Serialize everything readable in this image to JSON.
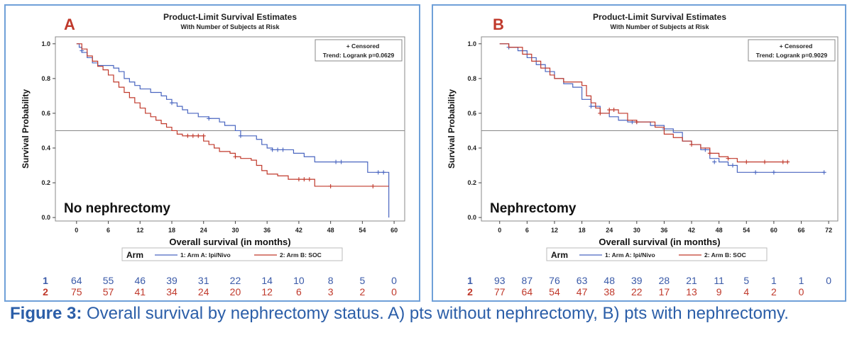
{
  "caption": {
    "label": "Figure 3:",
    "text": " Overall survival by nephrectomy status. A) pts without nephrectomy, B) pts with nephrectomy."
  },
  "colors": {
    "arm_a": "#4a66c0",
    "arm_b": "#c0392b",
    "panel_border": "#6fa0d8",
    "caption": "#2b5ea8",
    "panel_letter": "#c0392b"
  },
  "chart_data": [
    {
      "type": "line",
      "panel_letter": "A",
      "title": "Product-Limit Survival Estimates",
      "subtitle": "With Number of Subjects at Risk",
      "xlabel": "Overall survival (in months)",
      "ylabel": "Survival Probability",
      "xticks": [
        0,
        6,
        12,
        18,
        24,
        30,
        36,
        42,
        48,
        54,
        60
      ],
      "yticks": [
        0.0,
        0.2,
        0.4,
        0.6,
        0.8,
        1.0
      ],
      "xlim": [
        -4,
        62
      ],
      "ylim": [
        -0.02,
        1.04
      ],
      "reference_line": 0.5,
      "annotation_lines": [
        "+ Censored",
        "Trend: Logrank p=0.0629"
      ],
      "in_plot_label": "No nephrectomy",
      "legend_title": "Arm",
      "series": [
        {
          "name": "1: Arm A: Ipi/Nivo",
          "points": [
            [
              0,
              1.0
            ],
            [
              0.5,
              0.98
            ],
            [
              1,
              0.95
            ],
            [
              2,
              0.92
            ],
            [
              3,
              0.89
            ],
            [
              4,
              0.875
            ],
            [
              7,
              0.86
            ],
            [
              8,
              0.84
            ],
            [
              9,
              0.8
            ],
            [
              10,
              0.78
            ],
            [
              11,
              0.76
            ],
            [
              12,
              0.74
            ],
            [
              14,
              0.72
            ],
            [
              16,
              0.7
            ],
            [
              17,
              0.68
            ],
            [
              18,
              0.66
            ],
            [
              19,
              0.64
            ],
            [
              20,
              0.62
            ],
            [
              21,
              0.6
            ],
            [
              23,
              0.58
            ],
            [
              25,
              0.57
            ],
            [
              27,
              0.55
            ],
            [
              28,
              0.53
            ],
            [
              30,
              0.5
            ],
            [
              31,
              0.47
            ],
            [
              34,
              0.45
            ],
            [
              35,
              0.42
            ],
            [
              36,
              0.4
            ],
            [
              37,
              0.39
            ],
            [
              41,
              0.37
            ],
            [
              43,
              0.35
            ],
            [
              45,
              0.32
            ],
            [
              55,
              0.26
            ],
            [
              58,
              0.26
            ],
            [
              59,
              0.0
            ]
          ],
          "censored": [
            [
              1,
              0.96
            ],
            [
              18,
              0.66
            ],
            [
              25,
              0.57
            ],
            [
              31,
              0.47
            ],
            [
              37,
              0.39
            ],
            [
              38,
              0.39
            ],
            [
              39,
              0.39
            ],
            [
              49,
              0.32
            ],
            [
              50,
              0.32
            ],
            [
              57,
              0.26
            ],
            [
              58,
              0.26
            ]
          ]
        },
        {
          "name": "2: Arm B: SOC",
          "points": [
            [
              0,
              1.0
            ],
            [
              1,
              0.97
            ],
            [
              2,
              0.93
            ],
            [
              3,
              0.9
            ],
            [
              4,
              0.87
            ],
            [
              5,
              0.85
            ],
            [
              6,
              0.82
            ],
            [
              7,
              0.78
            ],
            [
              8,
              0.75
            ],
            [
              9,
              0.72
            ],
            [
              10,
              0.69
            ],
            [
              11,
              0.66
            ],
            [
              12,
              0.63
            ],
            [
              13,
              0.6
            ],
            [
              14,
              0.58
            ],
            [
              15,
              0.56
            ],
            [
              16,
              0.54
            ],
            [
              17,
              0.52
            ],
            [
              18,
              0.5
            ],
            [
              19,
              0.48
            ],
            [
              20,
              0.47
            ],
            [
              22,
              0.47
            ],
            [
              24,
              0.44
            ],
            [
              25,
              0.42
            ],
            [
              26,
              0.4
            ],
            [
              27,
              0.38
            ],
            [
              29,
              0.37
            ],
            [
              30,
              0.35
            ],
            [
              31,
              0.34
            ],
            [
              33,
              0.33
            ],
            [
              34,
              0.3
            ],
            [
              35,
              0.27
            ],
            [
              36,
              0.25
            ],
            [
              38,
              0.24
            ],
            [
              40,
              0.22
            ],
            [
              45,
              0.18
            ],
            [
              59,
              0.18
            ]
          ],
          "censored": [
            [
              21,
              0.47
            ],
            [
              22,
              0.47
            ],
            [
              23,
              0.47
            ],
            [
              24,
              0.47
            ],
            [
              30,
              0.35
            ],
            [
              42,
              0.22
            ],
            [
              43,
              0.22
            ],
            [
              44,
              0.22
            ],
            [
              48,
              0.18
            ],
            [
              56,
              0.18
            ]
          ]
        }
      ],
      "risk_table": {
        "row_labels": [
          "1",
          "2"
        ],
        "x": [
          0,
          6,
          12,
          18,
          24,
          30,
          36,
          42,
          48,
          54,
          60
        ],
        "rows": [
          [
            "64",
            "55",
            "46",
            "39",
            "31",
            "22",
            "14",
            "10",
            "8",
            "5",
            "0"
          ],
          [
            "75",
            "57",
            "41",
            "34",
            "24",
            "20",
            "12",
            "6",
            "3",
            "2",
            "0"
          ]
        ]
      }
    },
    {
      "type": "line",
      "panel_letter": "B",
      "title": "Product-Limit Survival Estimates",
      "subtitle": "With Number of Subjects at Risk",
      "xlabel": "Overall survival (in months)",
      "ylabel": "Survival Probability",
      "xticks": [
        0,
        6,
        12,
        18,
        24,
        30,
        36,
        42,
        48,
        54,
        60,
        66,
        72
      ],
      "yticks": [
        0.0,
        0.2,
        0.4,
        0.6,
        0.8,
        1.0
      ],
      "xlim": [
        -4,
        74
      ],
      "ylim": [
        -0.02,
        1.04
      ],
      "reference_line": 0.5,
      "annotation_lines": [
        "+ Censored",
        "Trend: Logrank p=0.9029"
      ],
      "in_plot_label": "Nephrectomy",
      "legend_title": "Arm",
      "series": [
        {
          "name": "1: Arm A: Ipi/Nivo",
          "points": [
            [
              0,
              1.0
            ],
            [
              2,
              0.98
            ],
            [
              4,
              0.96
            ],
            [
              6,
              0.92
            ],
            [
              8,
              0.88
            ],
            [
              10,
              0.84
            ],
            [
              12,
              0.8
            ],
            [
              14,
              0.77
            ],
            [
              16,
              0.75
            ],
            [
              18,
              0.68
            ],
            [
              20,
              0.64
            ],
            [
              22,
              0.6
            ],
            [
              24,
              0.58
            ],
            [
              26,
              0.56
            ],
            [
              28,
              0.55
            ],
            [
              31,
              0.55
            ],
            [
              33,
              0.53
            ],
            [
              36,
              0.51
            ],
            [
              38,
              0.49
            ],
            [
              40,
              0.44
            ],
            [
              42,
              0.42
            ],
            [
              44,
              0.39
            ],
            [
              46,
              0.34
            ],
            [
              48,
              0.32
            ],
            [
              50,
              0.3
            ],
            [
              52,
              0.26
            ],
            [
              71,
              0.26
            ]
          ],
          "censored": [
            [
              2,
              0.98
            ],
            [
              20,
              0.64
            ],
            [
              29,
              0.55
            ],
            [
              30,
              0.55
            ],
            [
              36,
              0.51
            ],
            [
              45,
              0.39
            ],
            [
              47,
              0.32
            ],
            [
              51,
              0.3
            ],
            [
              56,
              0.26
            ],
            [
              60,
              0.26
            ],
            [
              71,
              0.26
            ]
          ]
        },
        {
          "name": "2: Arm B: SOC",
          "points": [
            [
              0,
              1.0
            ],
            [
              2,
              0.98
            ],
            [
              5,
              0.94
            ],
            [
              7,
              0.9
            ],
            [
              9,
              0.86
            ],
            [
              11,
              0.82
            ],
            [
              12,
              0.8
            ],
            [
              14,
              0.78
            ],
            [
              18,
              0.76
            ],
            [
              19,
              0.7
            ],
            [
              20,
              0.66
            ],
            [
              21,
              0.63
            ],
            [
              22,
              0.6
            ],
            [
              24,
              0.62
            ],
            [
              26,
              0.6
            ],
            [
              28,
              0.56
            ],
            [
              30,
              0.55
            ],
            [
              32,
              0.55
            ],
            [
              34,
              0.52
            ],
            [
              36,
              0.48
            ],
            [
              38,
              0.46
            ],
            [
              40,
              0.44
            ],
            [
              42,
              0.42
            ],
            [
              44,
              0.4
            ],
            [
              46,
              0.37
            ],
            [
              48,
              0.35
            ],
            [
              50,
              0.34
            ],
            [
              52,
              0.32
            ],
            [
              63,
              0.32
            ]
          ],
          "censored": [
            [
              22,
              0.6
            ],
            [
              24,
              0.62
            ],
            [
              25,
              0.62
            ],
            [
              30,
              0.55
            ],
            [
              42,
              0.42
            ],
            [
              46,
              0.37
            ],
            [
              50,
              0.34
            ],
            [
              54,
              0.32
            ],
            [
              58,
              0.32
            ],
            [
              62,
              0.32
            ],
            [
              63,
              0.32
            ]
          ]
        }
      ],
      "risk_table": {
        "row_labels": [
          "1",
          "2"
        ],
        "x": [
          0,
          6,
          12,
          18,
          24,
          30,
          36,
          42,
          48,
          54,
          60,
          66,
          72
        ],
        "rows": [
          [
            "93",
            "87",
            "76",
            "63",
            "48",
            "39",
            "28",
            "21",
            "11",
            "5",
            "1",
            "1",
            "0"
          ],
          [
            "77",
            "64",
            "54",
            "47",
            "38",
            "22",
            "17",
            "13",
            "9",
            "4",
            "2",
            "0",
            ""
          ]
        ]
      }
    }
  ]
}
